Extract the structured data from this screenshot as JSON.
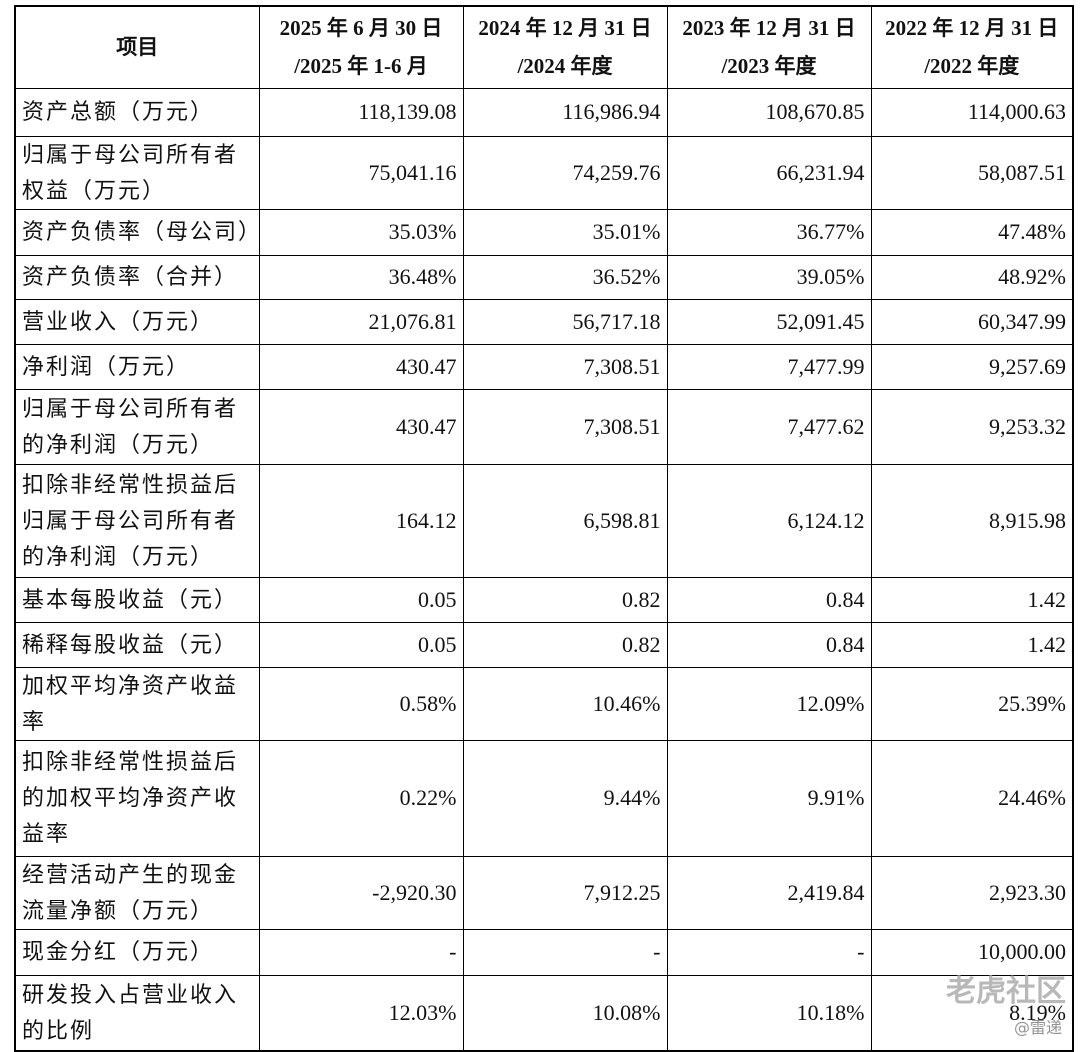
{
  "table": {
    "header": [
      [
        "项目"
      ],
      [
        "2025 年 6 月 30 日",
        "/2025 年 1-6 月"
      ],
      [
        "2024 年 12 月 31 日",
        "/2024 年度"
      ],
      [
        "2023 年 12 月 31 日",
        "/2023 年度"
      ],
      [
        "2022 年 12 月 31 日",
        "/2022 年度"
      ]
    ],
    "rows": [
      [
        "资产总额（万元）",
        "118,139.08",
        "116,986.94",
        "108,670.85",
        "114,000.63"
      ],
      [
        "归属于母公司所有者权益（万元）",
        "75,041.16",
        "74,259.76",
        "66,231.94",
        "58,087.51"
      ],
      [
        "资产负债率（母公司）",
        "35.03%",
        "35.01%",
        "36.77%",
        "47.48%"
      ],
      [
        "资产负债率（合并）",
        "36.48%",
        "36.52%",
        "39.05%",
        "48.92%"
      ],
      [
        "营业收入（万元）",
        "21,076.81",
        "56,717.18",
        "52,091.45",
        "60,347.99"
      ],
      [
        "净利润（万元）",
        "430.47",
        "7,308.51",
        "7,477.99",
        "9,257.69"
      ],
      [
        "归属于母公司所有者的净利润（万元）",
        "430.47",
        "7,308.51",
        "7,477.62",
        "9,253.32"
      ],
      [
        "扣除非经常性损益后归属于母公司所有者的净利润（万元）",
        "164.12",
        "6,598.81",
        "6,124.12",
        "8,915.98"
      ],
      [
        "基本每股收益（元）",
        "0.05",
        "0.82",
        "0.84",
        "1.42"
      ],
      [
        "稀释每股收益（元）",
        "0.05",
        "0.82",
        "0.84",
        "1.42"
      ],
      [
        "加权平均净资产收益率",
        "0.58%",
        "10.46%",
        "12.09%",
        "25.39%"
      ],
      [
        "扣除非经常性损益后的加权平均净资产收益率",
        "0.22%",
        "9.44%",
        "9.91%",
        "24.46%"
      ],
      [
        "经营活动产生的现金流量净额（万元）",
        "-2,920.30",
        "7,912.25",
        "2,419.84",
        "2,923.30"
      ],
      [
        "现金分红（万元）",
        "-",
        "-",
        "-",
        "10,000.00"
      ],
      [
        "研发投入占营业收入的比例",
        "12.03%",
        "10.08%",
        "10.18%",
        "8.19%"
      ]
    ]
  },
  "watermark": {
    "brand": "老虎社区",
    "author": "@雷递"
  }
}
